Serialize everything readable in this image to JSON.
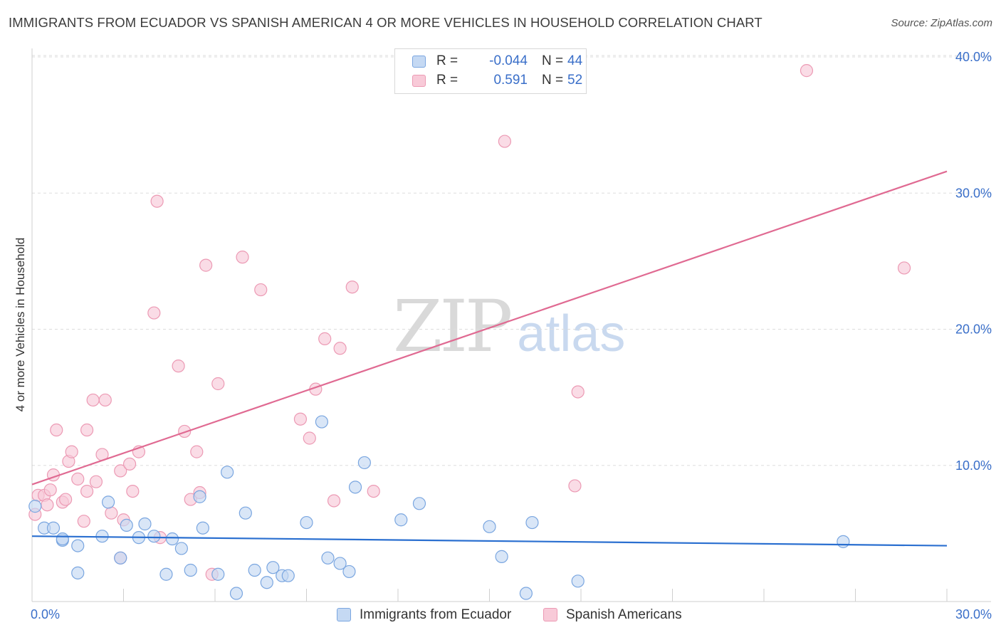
{
  "header": {
    "title": "IMMIGRANTS FROM ECUADOR VS SPANISH AMERICAN 4 OR MORE VEHICLES IN HOUSEHOLD CORRELATION CHART",
    "source": "Source: ZipAtlas.com"
  },
  "watermark": {
    "zip": "ZIP",
    "atlas": "atlas"
  },
  "stats": {
    "ecuador": {
      "r_label": "R =",
      "r_value": "-0.044",
      "n_label": "N =",
      "n_value": "44"
    },
    "spanish": {
      "r_label": "R =",
      "r_value": "0.591",
      "n_label": "N =",
      "n_value": "52"
    }
  },
  "colors": {
    "ecuador_fill": "#c5d9f3",
    "ecuador_stroke": "#7aa6e0",
    "ecuador_line": "#2a6fd0",
    "spanish_fill": "#f8cad8",
    "spanish_stroke": "#ec9ab4",
    "spanish_line": "#e06a92",
    "tick_label": "#3a6fc9",
    "grid": "#dddddd"
  },
  "chart_data": {
    "type": "scatter",
    "title": "IMMIGRANTS FROM ECUADOR VS SPANISH AMERICAN 4 OR MORE VEHICLES IN HOUSEHOLD CORRELATION CHART",
    "xlabel": "",
    "ylabel": "4 or more Vehicles in Household",
    "xlim": [
      0,
      30
    ],
    "ylim": [
      0,
      40
    ],
    "x_tick_labels": [
      "0.0%",
      "30.0%"
    ],
    "y_ticks": [
      10,
      20,
      30,
      40
    ],
    "y_tick_labels": [
      "10.0%",
      "20.0%",
      "30.0%",
      "40.0%"
    ],
    "legend": [
      "Immigrants from Ecuador",
      "Spanish Americans"
    ],
    "series": [
      {
        "name": "Immigrants from Ecuador",
        "r": -0.044,
        "n": 44,
        "trend": {
          "x": [
            0,
            30
          ],
          "y": [
            4.8,
            4.1
          ]
        },
        "points": [
          [
            0.1,
            7.0
          ],
          [
            0.4,
            5.4
          ],
          [
            0.7,
            5.4
          ],
          [
            1.0,
            4.5
          ],
          [
            1.5,
            4.1
          ],
          [
            2.3,
            4.8
          ],
          [
            2.5,
            7.3
          ],
          [
            3.1,
            5.6
          ],
          [
            3.7,
            5.7
          ],
          [
            4.0,
            4.8
          ],
          [
            4.6,
            4.6
          ],
          [
            4.9,
            3.9
          ],
          [
            5.6,
            5.4
          ],
          [
            5.5,
            7.7
          ],
          [
            6.4,
            9.5
          ],
          [
            7.0,
            6.5
          ],
          [
            9.0,
            5.8
          ],
          [
            9.5,
            13.2
          ],
          [
            10.6,
            8.4
          ],
          [
            10.9,
            10.2
          ],
          [
            12.1,
            6.0
          ],
          [
            12.7,
            7.2
          ],
          [
            15.0,
            5.5
          ],
          [
            16.4,
            5.8
          ],
          [
            26.6,
            4.4
          ],
          [
            1.5,
            2.1
          ],
          [
            2.9,
            3.2
          ],
          [
            4.4,
            2.0
          ],
          [
            5.2,
            2.3
          ],
          [
            6.1,
            2.0
          ],
          [
            6.7,
            0.6
          ],
          [
            7.3,
            2.3
          ],
          [
            7.7,
            1.4
          ],
          [
            7.9,
            2.5
          ],
          [
            8.2,
            1.9
          ],
          [
            8.4,
            1.9
          ],
          [
            9.7,
            3.2
          ],
          [
            10.1,
            2.8
          ],
          [
            10.4,
            2.2
          ],
          [
            15.4,
            3.3
          ],
          [
            16.2,
            0.6
          ],
          [
            17.9,
            1.5
          ],
          [
            3.5,
            4.7
          ],
          [
            1.0,
            4.6
          ]
        ]
      },
      {
        "name": "Spanish Americans",
        "r": 0.591,
        "n": 52,
        "trend": {
          "x": [
            0,
            30
          ],
          "y": [
            8.6,
            31.6
          ]
        },
        "points": [
          [
            0.1,
            6.4
          ],
          [
            0.2,
            7.8
          ],
          [
            0.4,
            7.8
          ],
          [
            0.5,
            7.1
          ],
          [
            0.6,
            8.2
          ],
          [
            0.7,
            9.3
          ],
          [
            0.8,
            12.6
          ],
          [
            1.0,
            7.3
          ],
          [
            1.1,
            7.5
          ],
          [
            1.2,
            10.3
          ],
          [
            1.3,
            11.0
          ],
          [
            1.5,
            9.0
          ],
          [
            1.7,
            5.9
          ],
          [
            1.8,
            12.6
          ],
          [
            1.8,
            8.1
          ],
          [
            2.0,
            14.8
          ],
          [
            2.1,
            8.8
          ],
          [
            2.3,
            10.8
          ],
          [
            2.4,
            14.8
          ],
          [
            2.6,
            6.5
          ],
          [
            2.9,
            3.2
          ],
          [
            2.9,
            9.6
          ],
          [
            3.0,
            6.0
          ],
          [
            3.2,
            10.1
          ],
          [
            3.3,
            8.1
          ],
          [
            3.5,
            11.0
          ],
          [
            4.0,
            21.2
          ],
          [
            4.1,
            29.4
          ],
          [
            4.2,
            4.7
          ],
          [
            4.8,
            17.3
          ],
          [
            5.0,
            12.5
          ],
          [
            5.2,
            7.5
          ],
          [
            5.4,
            11.0
          ],
          [
            5.5,
            8.0
          ],
          [
            5.7,
            24.7
          ],
          [
            5.9,
            2.0
          ],
          [
            6.1,
            16.0
          ],
          [
            6.9,
            25.3
          ],
          [
            7.5,
            22.9
          ],
          [
            8.8,
            13.4
          ],
          [
            9.1,
            12.0
          ],
          [
            9.3,
            15.6
          ],
          [
            9.6,
            19.3
          ],
          [
            9.9,
            7.4
          ],
          [
            10.1,
            18.6
          ],
          [
            10.5,
            23.1
          ],
          [
            11.2,
            8.1
          ],
          [
            15.5,
            33.8
          ],
          [
            17.8,
            8.5
          ],
          [
            17.9,
            15.4
          ],
          [
            25.4,
            39.0
          ],
          [
            28.6,
            24.5
          ]
        ]
      }
    ]
  }
}
